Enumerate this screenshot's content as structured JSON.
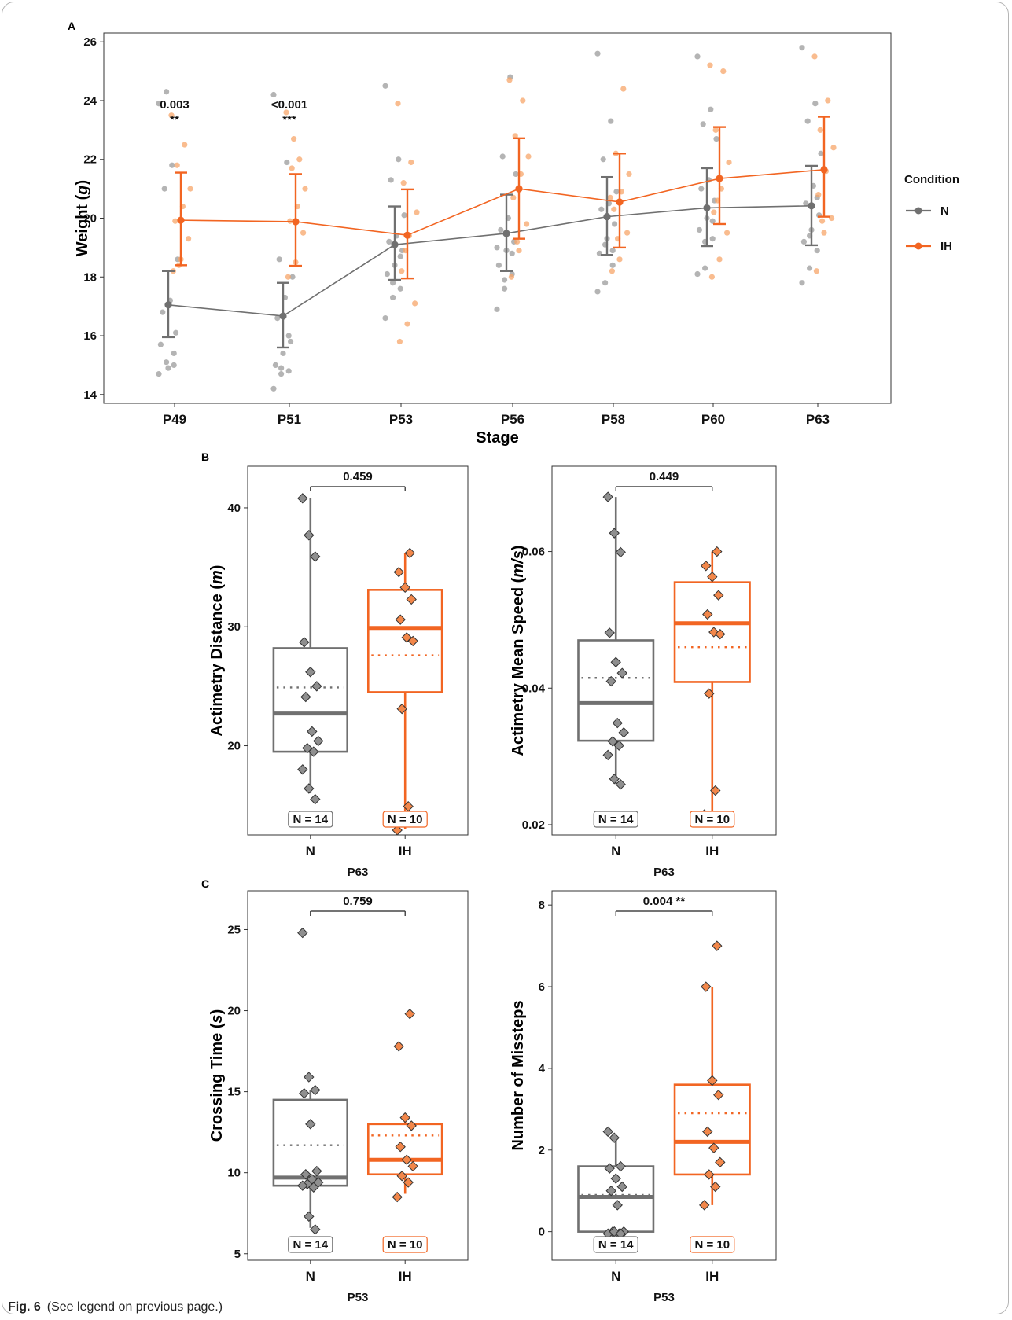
{
  "caption": {
    "label": "Fig. 6",
    "text": "(See legend on previous page.)"
  },
  "colors": {
    "N": "#707070",
    "IH": "#f26522",
    "N_point": "#9b9b9b",
    "IH_point": "#f7a56a"
  },
  "chart_data": [
    {
      "panel": "A",
      "type": "line",
      "xlabel": "Stage",
      "ylabel": "Weight (g)",
      "ylim": [
        13.7,
        26.3
      ],
      "yticks": [
        14,
        16,
        18,
        20,
        22,
        24,
        26
      ],
      "categories": [
        "P49",
        "P51",
        "P53",
        "P56",
        "P58",
        "P60",
        "P63"
      ],
      "legend": {
        "title": "Condition",
        "position": "right",
        "entries": [
          "N",
          "IH"
        ]
      },
      "series": [
        {
          "name": "N",
          "mean": [
            17.05,
            16.67,
            19.1,
            19.48,
            20.05,
            20.35,
            20.42
          ],
          "lower": [
            15.95,
            15.6,
            17.9,
            18.2,
            18.75,
            19.05,
            19.08
          ],
          "upper": [
            18.2,
            17.8,
            20.4,
            20.8,
            21.4,
            21.7,
            21.78
          ],
          "points": [
            [
              14.7,
              15.1,
              15.4,
              15.7,
              14.9,
              16.1,
              16.8,
              17.2,
              18.6,
              21.0,
              21.8,
              23.9,
              24.3,
              15.0
            ],
            [
              14.2,
              14.7,
              14.8,
              15.0,
              15.4,
              15.8,
              16.6,
              17.3,
              18.0,
              18.6,
              21.9,
              24.2,
              14.9,
              16.0
            ],
            [
              16.6,
              17.3,
              17.6,
              18.1,
              18.4,
              18.9,
              19.2,
              19.4,
              20.1,
              21.3,
              22.0,
              24.5,
              17.8,
              18.7
            ],
            [
              16.9,
              17.6,
              18.1,
              18.4,
              18.9,
              19.2,
              19.6,
              20.0,
              21.5,
              22.1,
              24.8,
              19.0,
              17.9,
              18.8
            ],
            [
              17.5,
              17.8,
              18.4,
              18.8,
              19.3,
              19.8,
              20.3,
              20.5,
              20.9,
              22.0,
              23.3,
              25.6,
              19.1,
              18.9
            ],
            [
              18.1,
              18.3,
              19.3,
              19.6,
              20.0,
              20.6,
              21.0,
              21.3,
              22.7,
              23.2,
              23.7,
              25.5,
              19.2,
              19.9
            ],
            [
              17.8,
              18.3,
              18.9,
              19.2,
              19.6,
              20.1,
              20.5,
              21.1,
              22.2,
              23.3,
              23.9,
              25.8,
              19.4,
              20.7
            ]
          ]
        },
        {
          "name": "IH",
          "mean": [
            19.93,
            19.88,
            19.42,
            21.0,
            20.55,
            21.35,
            21.65
          ],
          "lower": [
            18.4,
            18.38,
            17.95,
            19.3,
            19.0,
            19.8,
            20.05
          ],
          "upper": [
            21.55,
            21.5,
            20.98,
            22.72,
            22.2,
            23.1,
            23.45
          ],
          "points": [
            [
              18.2,
              18.6,
              19.3,
              19.9,
              20.4,
              21.0,
              21.8,
              22.5,
              23.5,
              18.4
            ],
            [
              18.0,
              18.5,
              19.5,
              19.9,
              20.4,
              21.0,
              21.7,
              22.0,
              23.6,
              22.7
            ],
            [
              15.8,
              16.4,
              17.1,
              18.2,
              19.4,
              20.2,
              21.2,
              21.9,
              23.9,
              18.9
            ],
            [
              18.0,
              18.9,
              19.8,
              20.7,
              21.5,
              22.1,
              22.8,
              24.0,
              24.7,
              19.2
            ],
            [
              18.2,
              18.6,
              19.5,
              20.3,
              20.9,
              21.5,
              22.2,
              24.4,
              20.7,
              19.3
            ],
            [
              18.0,
              18.6,
              19.5,
              20.2,
              21.0,
              21.9,
              23.0,
              25.0,
              25.2,
              20.6
            ],
            [
              18.2,
              19.5,
              20.0,
              20.8,
              21.6,
              22.4,
              23.0,
              24.0,
              25.5,
              19.9
            ]
          ]
        }
      ],
      "annotations": [
        {
          "category": "P49",
          "p": "0.003",
          "stars": "**"
        },
        {
          "category": "P51",
          "p": "<0.001",
          "stars": "***"
        }
      ]
    },
    {
      "panel": "B",
      "type": "box",
      "ylabel": "Actimetry Distance (m)",
      "xlabel": "P63",
      "ylim": [
        12.5,
        43.5
      ],
      "yticks": [
        20,
        30,
        40
      ],
      "categories": [
        "N",
        "IH"
      ],
      "bracket": {
        "text": "0.459"
      },
      "counts": [
        "N = 14",
        "N = 10"
      ],
      "groups": [
        {
          "name": "N",
          "min": 16.0,
          "q1": 19.5,
          "median": 22.7,
          "mean": 24.9,
          "q3": 28.2,
          "max": 40.8,
          "points": [
            40.8,
            37.7,
            35.9,
            28.7,
            26.2,
            25.0,
            24.1,
            21.2,
            20.4,
            19.8,
            19.5,
            18.0,
            16.4,
            15.5
          ]
        },
        {
          "name": "IH",
          "min": 13.0,
          "q1": 24.5,
          "median": 29.9,
          "mean": 27.6,
          "q3": 33.1,
          "max": 36.2,
          "points": [
            36.2,
            34.6,
            33.3,
            32.3,
            30.6,
            29.1,
            28.8,
            23.1,
            14.9,
            12.9
          ]
        }
      ]
    },
    {
      "panel": "B",
      "type": "box",
      "ylabel": "Actimetry Mean Speed (m/s)",
      "xlabel": "P63",
      "ylim": [
        0.0185,
        0.0725
      ],
      "yticks": [
        0.02,
        0.04,
        0.06
      ],
      "ytick_labels": [
        "0.02",
        "0.04",
        "0.06"
      ],
      "categories": [
        "N",
        "IH"
      ],
      "bracket": {
        "text": "0.449"
      },
      "counts": [
        "N = 14",
        "N = 10"
      ],
      "groups": [
        {
          "name": "N",
          "min": 0.026,
          "q1": 0.0323,
          "median": 0.0378,
          "mean": 0.0415,
          "q3": 0.047,
          "max": 0.068,
          "points": [
            0.068,
            0.0627,
            0.0599,
            0.0481,
            0.0438,
            0.0422,
            0.041,
            0.0349,
            0.0335,
            0.0322,
            0.0316,
            0.0302,
            0.0267,
            0.0259
          ]
        },
        {
          "name": "IH",
          "min": 0.0215,
          "q1": 0.0409,
          "median": 0.0495,
          "mean": 0.046,
          "q3": 0.0555,
          "max": 0.06,
          "points": [
            0.06,
            0.0579,
            0.0563,
            0.0536,
            0.0508,
            0.0482,
            0.0479,
            0.0392,
            0.025,
            0.0215
          ]
        }
      ]
    },
    {
      "panel": "C",
      "type": "box",
      "ylabel": "Crossing Time (s)",
      "xlabel": "P53",
      "ylim": [
        4.6,
        27.4
      ],
      "yticks": [
        5,
        10,
        15,
        20,
        25
      ],
      "categories": [
        "N",
        "IH"
      ],
      "bracket": {
        "text": "0.759"
      },
      "counts": [
        "N = 14",
        "N = 10"
      ],
      "groups": [
        {
          "name": "N",
          "min": 6.6,
          "q1": 9.2,
          "median": 9.7,
          "mean": 11.7,
          "q3": 14.5,
          "max": 15.1,
          "points": [
            24.8,
            15.9,
            15.1,
            14.9,
            13.0,
            10.1,
            9.9,
            9.6,
            9.4,
            9.3,
            9.1,
            9.2,
            7.3,
            6.5
          ]
        },
        {
          "name": "IH",
          "min": 8.7,
          "q1": 9.9,
          "median": 10.8,
          "mean": 12.3,
          "q3": 13.0,
          "max": 13.5,
          "points": [
            19.8,
            17.8,
            13.4,
            12.9,
            11.6,
            10.8,
            10.4,
            9.8,
            9.4,
            8.5
          ]
        }
      ]
    },
    {
      "panel": "C",
      "type": "box",
      "ylabel": "Number of Missteps",
      "xlabel": "P53",
      "ylim": [
        -0.7,
        8.35
      ],
      "yticks": [
        0,
        2,
        4,
        6,
        8
      ],
      "categories": [
        "N",
        "IH"
      ],
      "bracket": {
        "text": "0.004 **"
      },
      "counts": [
        "N = 14",
        "N = 10"
      ],
      "groups": [
        {
          "name": "N",
          "min": 0.0,
          "q1": 0.0,
          "median": 0.85,
          "mean": 0.9,
          "q3": 1.6,
          "max": 2.35,
          "points": [
            2.45,
            2.3,
            1.6,
            1.55,
            1.3,
            1.1,
            1.0,
            0.65,
            0.0,
            0.0,
            -0.05,
            -0.05,
            0.0,
            -0.05
          ]
        },
        {
          "name": "IH",
          "min": 0.65,
          "q1": 1.4,
          "median": 2.2,
          "mean": 2.9,
          "q3": 3.6,
          "max": 6.0,
          "points": [
            7.0,
            6.0,
            3.7,
            3.35,
            2.45,
            2.05,
            1.7,
            1.4,
            1.1,
            0.65
          ]
        }
      ]
    }
  ]
}
